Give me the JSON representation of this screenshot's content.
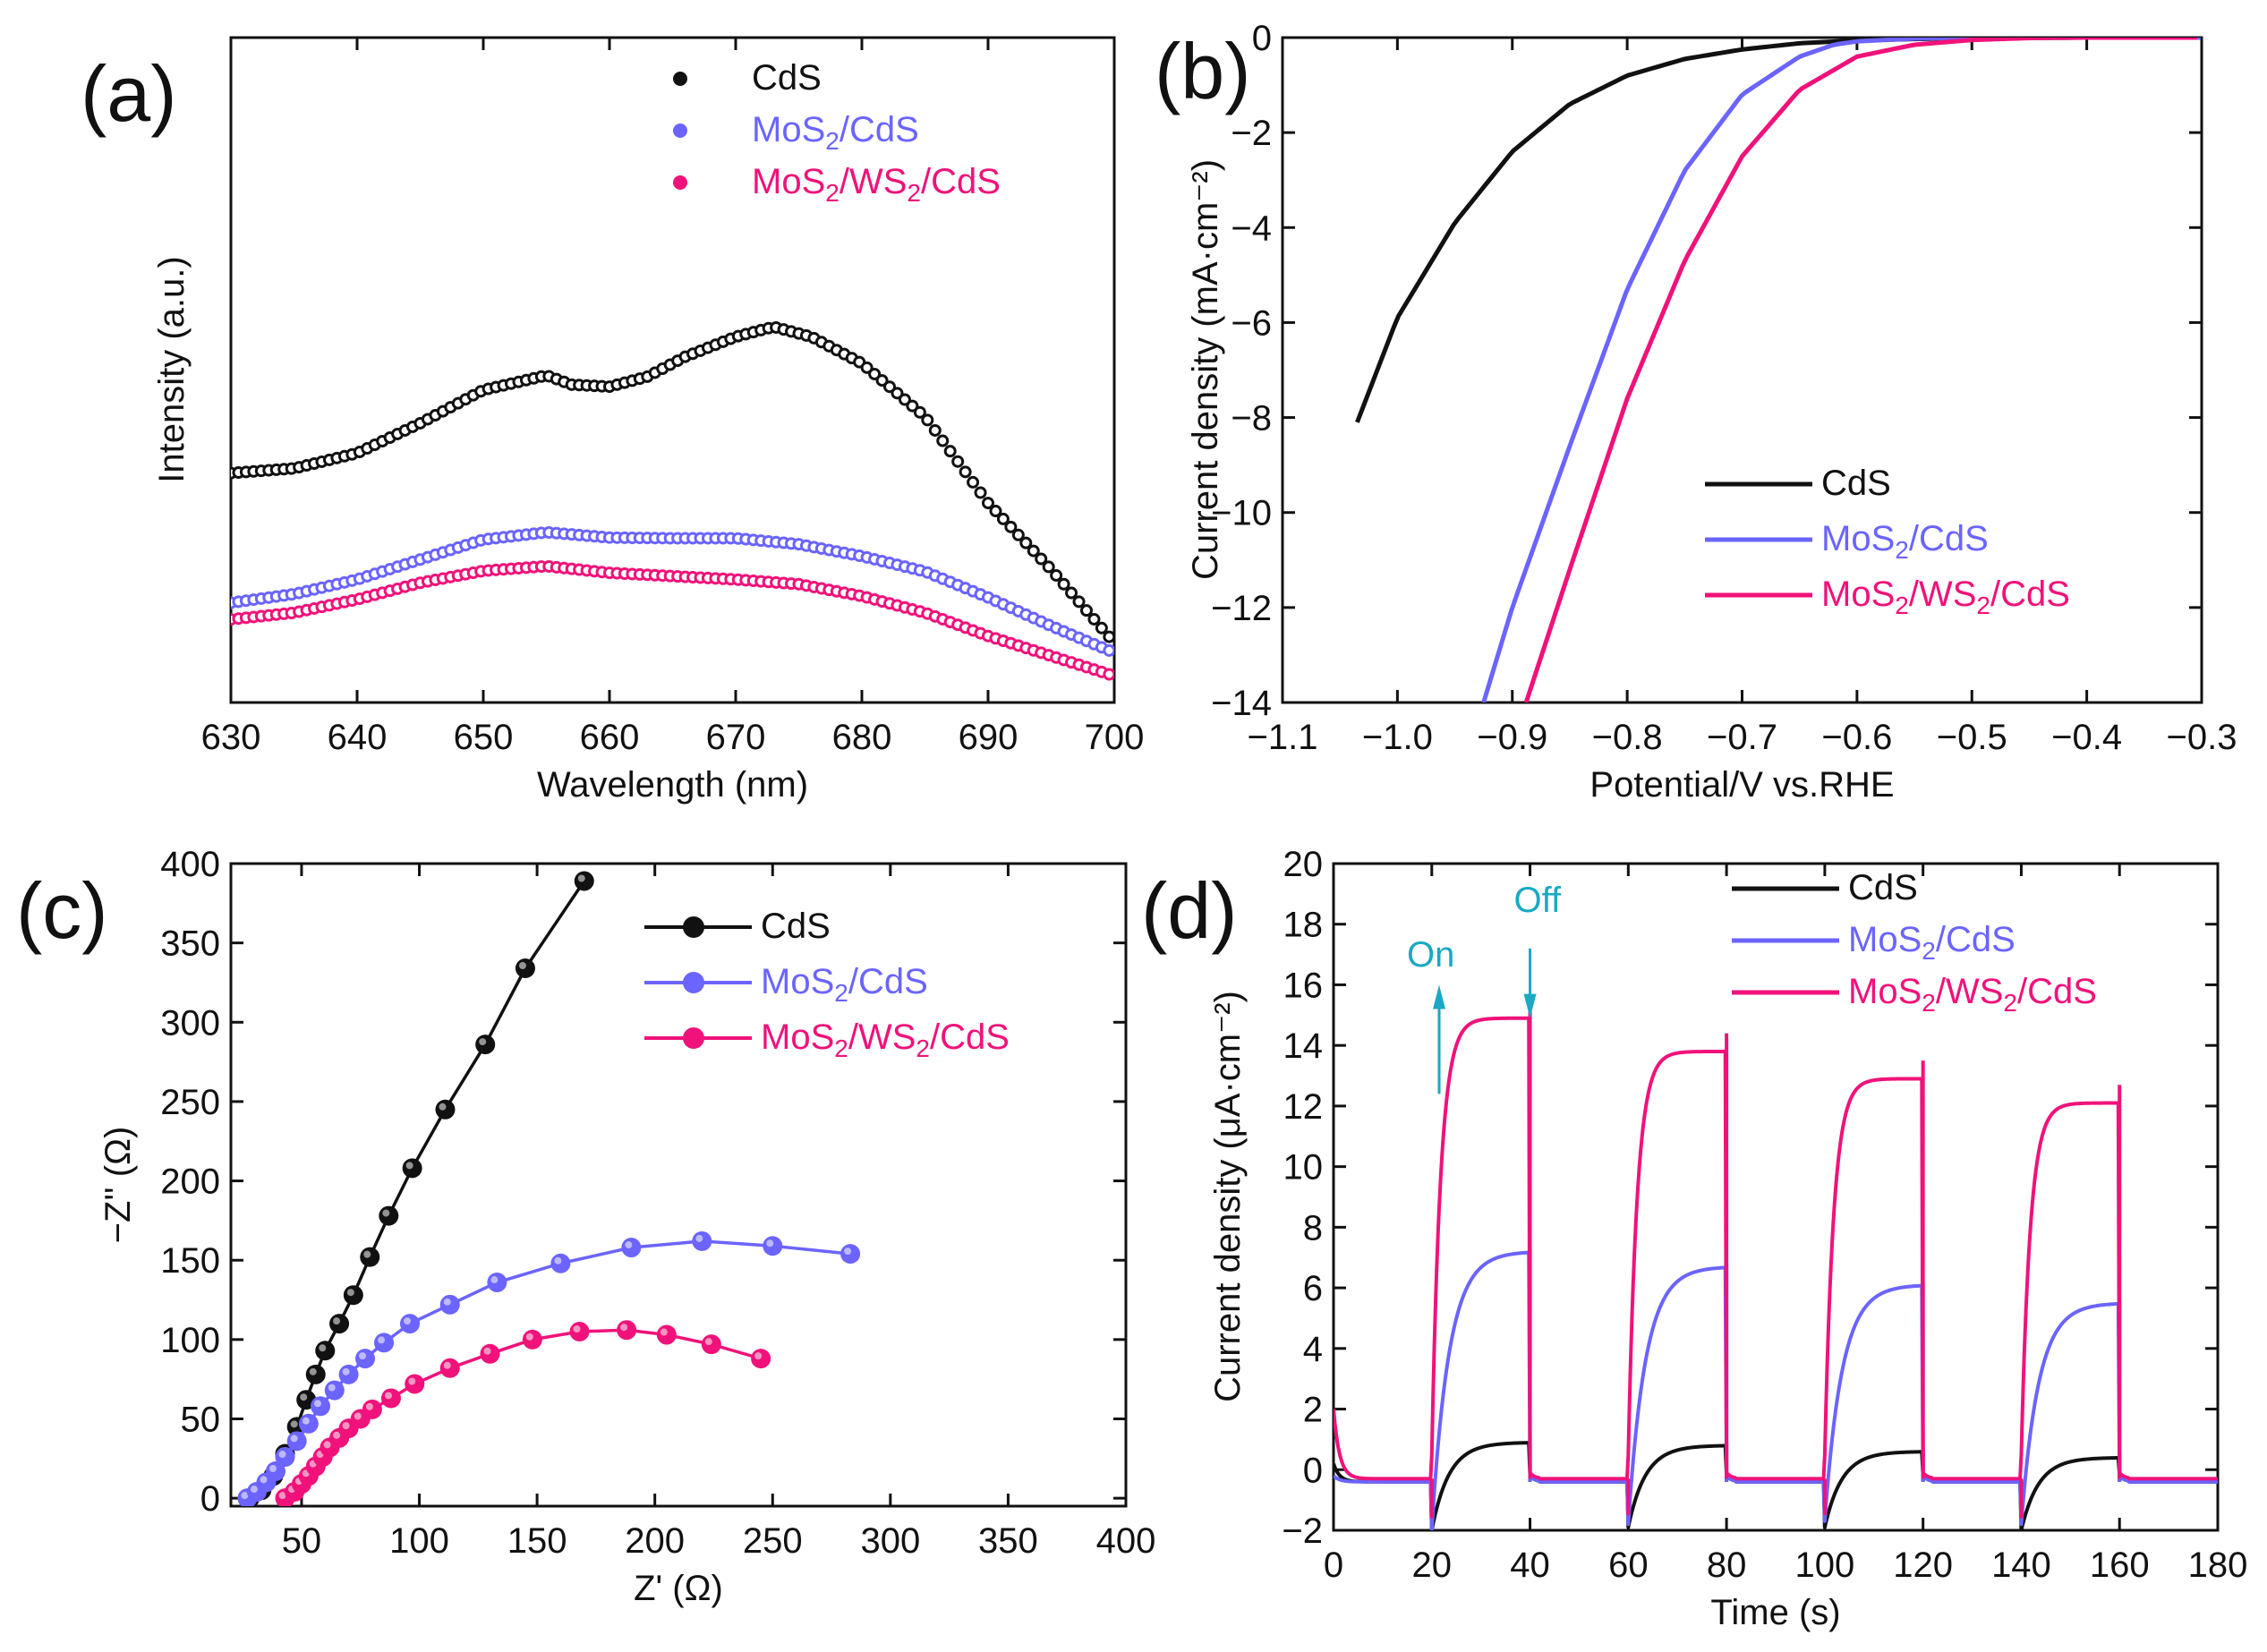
{
  "colors": {
    "cds": "#111111",
    "mos2_cds": "#6b64ff",
    "mos2_ws2_cds": "#f0127a",
    "annotation": "#1aa9c4",
    "axis": "#111111"
  },
  "chart_data": [
    {
      "panel": "(a)",
      "type": "scatter",
      "title": "",
      "xlabel": "Wavelength (nm)",
      "ylabel": "Intensity (a.u.)",
      "xlim": [
        630,
        700
      ],
      "ylim": [
        0,
        100
      ],
      "xticks": [
        630,
        640,
        650,
        660,
        670,
        680,
        690,
        700
      ],
      "show_y_ticks": false,
      "legend_position": "top-center",
      "legend": [
        {
          "label": "CdS",
          "series": 0
        },
        {
          "base": "MoS",
          "sub": "2",
          "tail": "/CdS",
          "series": 1
        },
        {
          "base": "MoS",
          "sub": "2",
          "mid": "/WS",
          "sub2": "2",
          "tail": "/CdS",
          "series": 2
        }
      ],
      "series": [
        {
          "name": "CdS",
          "color_key": "cds",
          "x": [
            630,
            635,
            640,
            645,
            650,
            653,
            655,
            657,
            660,
            663,
            666,
            670,
            673,
            676,
            680,
            685,
            690,
            695,
            700
          ],
          "y": [
            34.5,
            35.2,
            37.5,
            42,
            47,
            48.3,
            49.2,
            47.8,
            47.5,
            49,
            52,
            55,
            56.5,
            55,
            51,
            43,
            30,
            20,
            9
          ]
        },
        {
          "name": "MoS2/CdS",
          "color_key": "mos2_cds",
          "x": [
            630,
            635,
            640,
            645,
            650,
            655,
            660,
            665,
            670,
            675,
            680,
            685,
            690,
            695,
            700
          ],
          "y": [
            15,
            16.3,
            18.5,
            21.5,
            24.5,
            25.6,
            24.8,
            24.7,
            24.7,
            23.8,
            22,
            19.7,
            15.8,
            11.5,
            7.5
          ]
        },
        {
          "name": "MoS2/WS2/CdS",
          "color_key": "mos2_ws2_cds",
          "x": [
            630,
            635,
            640,
            645,
            650,
            655,
            660,
            665,
            670,
            675,
            680,
            685,
            690,
            695,
            700
          ],
          "y": [
            12.5,
            13.5,
            15.5,
            18,
            19.8,
            20.5,
            19.5,
            19,
            18.5,
            17.8,
            16,
            13.5,
            10,
            7,
            4
          ]
        }
      ]
    },
    {
      "panel": "(b)",
      "type": "line",
      "title": "",
      "xlabel": "Potential/V vs.RHE",
      "ylabel": "Current density (mA·cm⁻²)",
      "xlim": [
        -1.1,
        -0.3
      ],
      "ylim": [
        -14,
        0
      ],
      "xticks": [
        -1.1,
        -1.0,
        -0.9,
        -0.8,
        -0.7,
        -0.6,
        -0.5,
        -0.4,
        -0.3
      ],
      "xtick_labels": [
        "−1.1",
        "−1.0",
        "−0.9",
        "−0.8",
        "−0.7",
        "−0.6",
        "−0.5",
        "−0.4",
        "−0.3"
      ],
      "yticks": [
        0,
        -2,
        -4,
        -6,
        -8,
        -10,
        -12,
        -14
      ],
      "ytick_labels": [
        "0",
        "−2",
        "−4",
        "−6",
        "−8",
        "−10",
        "−12",
        "−14"
      ],
      "legend_position": "bottom-right",
      "legend": [
        {
          "label": "CdS",
          "series": 0
        },
        {
          "base": "MoS",
          "sub": "2",
          "tail": "/CdS",
          "series": 1
        },
        {
          "base": "MoS",
          "sub": "2",
          "mid": "/WS",
          "sub2": "2",
          "tail": "/CdS",
          "series": 2
        }
      ],
      "series": [
        {
          "name": "CdS",
          "color_key": "cds",
          "x": [
            -1.035,
            -1.0,
            -0.95,
            -0.9,
            -0.85,
            -0.8,
            -0.75,
            -0.7,
            -0.65,
            -0.6,
            -0.55,
            -0.5,
            -0.4,
            -0.3
          ],
          "y": [
            -8.1,
            -5.9,
            -3.9,
            -2.4,
            -1.4,
            -0.8,
            -0.45,
            -0.25,
            -0.12,
            -0.06,
            -0.03,
            -0.01,
            0,
            0
          ]
        },
        {
          "name": "MoS2/CdS",
          "color_key": "mos2_cds",
          "x": [
            -0.925,
            -0.9,
            -0.85,
            -0.8,
            -0.75,
            -0.7,
            -0.65,
            -0.62,
            -0.6,
            -0.55,
            -0.5,
            -0.4,
            -0.3
          ],
          "y": [
            -14,
            -12,
            -8.6,
            -5.3,
            -2.8,
            -1.2,
            -0.4,
            -0.15,
            -0.08,
            -0.02,
            0,
            0,
            0
          ]
        },
        {
          "name": "MoS2/WS2/CdS",
          "color_key": "mos2_ws2_cds",
          "x": [
            -0.888,
            -0.85,
            -0.8,
            -0.75,
            -0.7,
            -0.65,
            -0.6,
            -0.55,
            -0.5,
            -0.45,
            -0.4,
            -0.3
          ],
          "y": [
            -14,
            -11.2,
            -7.6,
            -4.7,
            -2.5,
            -1.1,
            -0.4,
            -0.15,
            -0.05,
            -0.01,
            0,
            0
          ]
        }
      ]
    },
    {
      "panel": "(c)",
      "type": "scatter",
      "title": "",
      "xlabel": "Z' (Ω)",
      "ylabel": "−Z'' (Ω)",
      "xlim": [
        20,
        400
      ],
      "ylim": [
        -5,
        400
      ],
      "xticks": [
        50,
        100,
        150,
        200,
        250,
        300,
        350,
        400
      ],
      "yticks": [
        0,
        50,
        100,
        150,
        200,
        250,
        300,
        350,
        400
      ],
      "legend_position": "top-right",
      "legend": [
        {
          "label": "CdS",
          "series": 0
        },
        {
          "base": "MoS",
          "sub": "2",
          "tail": "/CdS",
          "series": 1
        },
        {
          "base": "MoS",
          "sub": "2",
          "mid": "/WS",
          "sub2": "2",
          "tail": "/CdS",
          "series": 2
        }
      ],
      "series": [
        {
          "name": "CdS",
          "color_key": "cds",
          "x": [
            28,
            33,
            38,
            43,
            48,
            52,
            56,
            60,
            66,
            72,
            79,
            87,
            97,
            111,
            128,
            145,
            170
          ],
          "y": [
            0,
            5,
            14,
            28,
            45,
            62,
            78,
            93,
            110,
            128,
            152,
            178,
            208,
            245,
            286,
            334,
            389
          ]
        },
        {
          "name": "MoS2/CdS",
          "color_key": "mos2_cds",
          "x": [
            27,
            31,
            35,
            39,
            43,
            48,
            53,
            58,
            64,
            70,
            77,
            85,
            96,
            113,
            133,
            160,
            190,
            220,
            250,
            283
          ],
          "y": [
            0,
            4,
            10,
            17,
            26,
            36,
            47,
            58,
            68,
            78,
            88,
            98,
            110,
            122,
            136,
            148,
            158,
            162,
            159,
            154
          ]
        },
        {
          "name": "MoS2/WS2/CdS",
          "color_key": "mos2_ws2_cds",
          "x": [
            43,
            47,
            50,
            53,
            56,
            59,
            62,
            66,
            70,
            75,
            80,
            88,
            98,
            113,
            130,
            148,
            168,
            188,
            205,
            224,
            245
          ],
          "y": [
            0,
            4,
            9,
            14,
            20,
            26,
            32,
            38,
            44,
            50,
            56,
            63,
            72,
            82,
            91,
            100,
            105,
            106,
            103,
            97,
            88
          ]
        }
      ]
    },
    {
      "panel": "(d)",
      "type": "line",
      "title": "",
      "xlabel": "Time (s)",
      "ylabel": "Current density (μA·cm⁻²)",
      "xlim": [
        0,
        180
      ],
      "ylim": [
        -2,
        20
      ],
      "xticks": [
        0,
        20,
        40,
        60,
        80,
        100,
        120,
        140,
        160,
        180
      ],
      "yticks": [
        -2,
        0,
        2,
        4,
        6,
        8,
        10,
        12,
        14,
        16,
        18,
        20
      ],
      "ytick_labels": [
        "−2",
        "0",
        "2",
        "4",
        "6",
        "8",
        "10",
        "12",
        "14",
        "16",
        "18",
        "20"
      ],
      "legend_position": "top-right",
      "legend": [
        {
          "label": "CdS",
          "series": 0
        },
        {
          "base": "MoS",
          "sub": "2",
          "tail": "/CdS",
          "series": 1
        },
        {
          "base": "MoS",
          "sub": "2",
          "mid": "/WS",
          "sub2": "2",
          "tail": "/CdS",
          "series": 2
        }
      ],
      "annotations": [
        {
          "text": "On",
          "x": 21,
          "y": 15.5
        },
        {
          "text": "Off",
          "x": 40,
          "y": 15.5
        }
      ],
      "light_on_intervals": [
        [
          20,
          40
        ],
        [
          60,
          80
        ],
        [
          100,
          120
        ],
        [
          140,
          160
        ]
      ],
      "dark_baseline": [
        -0.4,
        -0.4,
        -0.3
      ],
      "start_value": [
        0.2,
        -0.2,
        2.0
      ],
      "series": [
        {
          "name": "CdS",
          "color_key": "cds",
          "plateaus": [
            0.9,
            0.8,
            0.6,
            0.4
          ],
          "dips": [
            -2.0,
            -1.9,
            -1.9,
            -2.0
          ]
        },
        {
          "name": "MoS2/CdS",
          "color_key": "mos2_cds",
          "plateaus": [
            7.2,
            6.7,
            6.1,
            5.5
          ],
          "dips": [
            -2.0,
            -1.8,
            -1.7,
            -1.8
          ]
        },
        {
          "name": "MoS2/WS2/CdS",
          "color_key": "mos2_ws2_cds",
          "plateaus": [
            14.9,
            13.8,
            12.9,
            12.1
          ],
          "dips": [
            -1.6,
            -1.5,
            -1.5,
            -1.6
          ]
        }
      ]
    }
  ]
}
